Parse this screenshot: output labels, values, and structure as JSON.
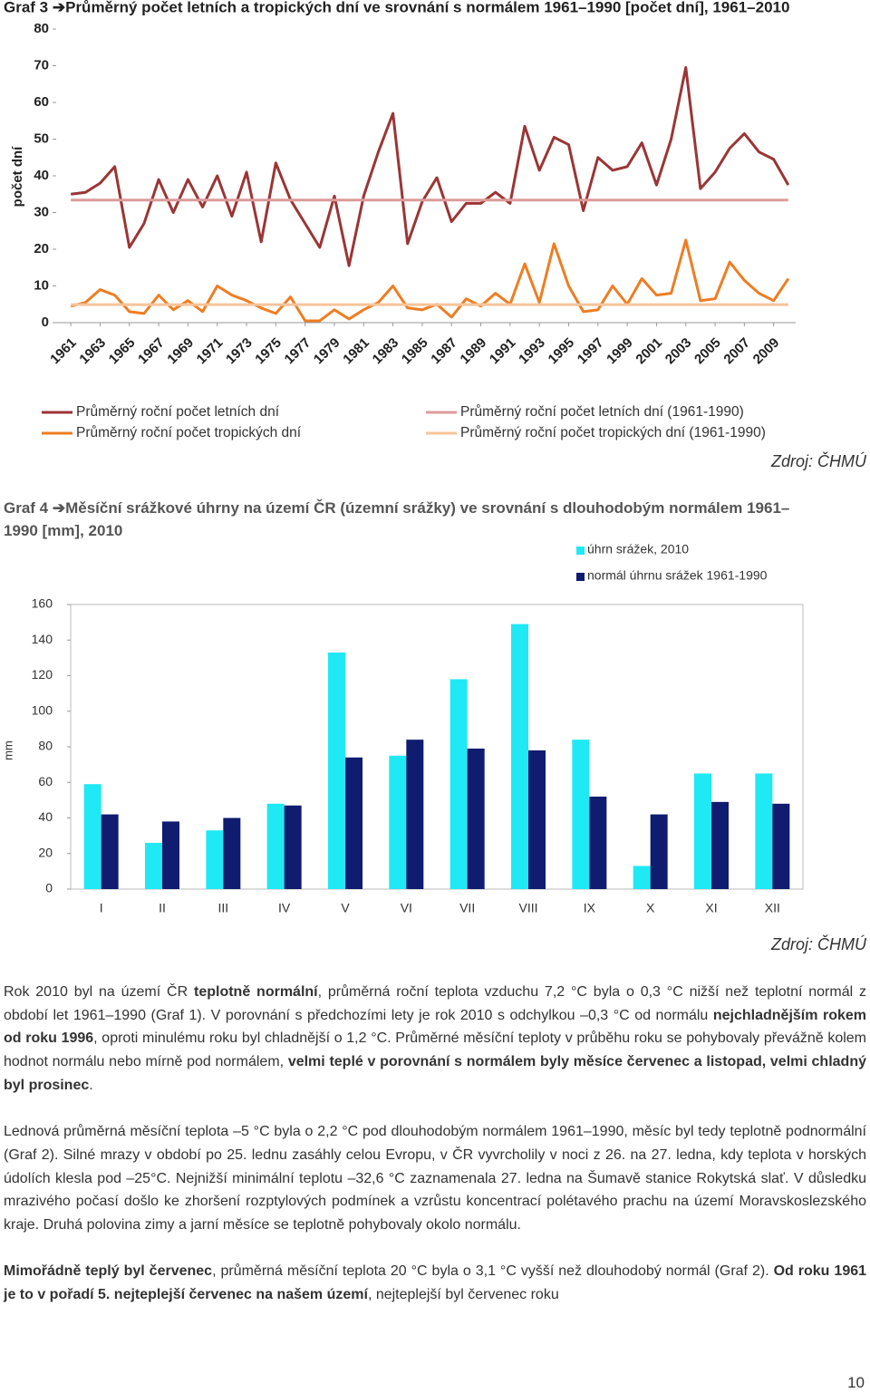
{
  "chart_data": [
    {
      "type": "line",
      "title": "Graf 3 ➔Průměrný počet letních a tropických dní ve srovnání s normálem 1961–1990 [počet dní], 1961–2010",
      "y_label": "počet dní",
      "source": "Zdroj: ČHMÚ",
      "x": [
        1961,
        1962,
        1963,
        1964,
        1965,
        1966,
        1967,
        1968,
        1969,
        1970,
        1971,
        1972,
        1973,
        1974,
        1975,
        1976,
        1977,
        1978,
        1979,
        1980,
        1981,
        1982,
        1983,
        1984,
        1985,
        1986,
        1987,
        1988,
        1989,
        1990,
        1991,
        1992,
        1993,
        1994,
        1995,
        1996,
        1997,
        1998,
        1999,
        2000,
        2001,
        2002,
        2003,
        2004,
        2005,
        2006,
        2007,
        2008,
        2009,
        2010
      ],
      "xlim": [
        1960,
        2011
      ],
      "xticks": [
        1961,
        1963,
        1965,
        1967,
        1969,
        1971,
        1973,
        1975,
        1977,
        1979,
        1981,
        1983,
        1985,
        1987,
        1989,
        1991,
        1993,
        1995,
        1997,
        1999,
        2001,
        2003,
        2005,
        2007,
        2009
      ],
      "ylim": [
        0,
        80
      ],
      "yticks": [
        0,
        10,
        20,
        30,
        40,
        50,
        60,
        70,
        80
      ],
      "series": [
        {
          "name": "Průměrný roční počet letních dní",
          "color": "#9b3535",
          "values": [
            35,
            35.5,
            38,
            42.5,
            20.5,
            27,
            39,
            30,
            39,
            31.5,
            40,
            29,
            41,
            22,
            43.5,
            33.5,
            27,
            20.5,
            34.5,
            15.5,
            34.5,
            46.5,
            57,
            21.5,
            33,
            39.5,
            27.5,
            32.5,
            32.5,
            35.5,
            32.5,
            53.5,
            41.5,
            50.5,
            48.5,
            30.5,
            45,
            41.5,
            42.5,
            49,
            37.5,
            50,
            69.5,
            36.5,
            41,
            47.5,
            51.5,
            46.5,
            44.5,
            37.5
          ]
        },
        {
          "name": "Průměrný roční počet tropických dní",
          "color": "#ee7d22",
          "values": [
            4.5,
            5.5,
            9,
            7.5,
            3,
            2.5,
            7.5,
            3.5,
            6,
            3,
            10,
            7.5,
            6,
            4,
            2.5,
            7,
            0.5,
            0.5,
            3.5,
            1,
            3.5,
            5.5,
            10,
            4,
            3.5,
            5,
            1.5,
            6.5,
            4.5,
            8,
            5,
            16,
            5.5,
            21.5,
            10,
            3,
            3.5,
            10,
            5,
            12,
            7.5,
            8,
            22.5,
            6,
            6.5,
            16.5,
            11.5,
            8,
            6,
            12
          ]
        },
        {
          "name": "Průměrný roční počet letních dní (1961-1990)",
          "color": "#dc9b9b",
          "values": [
            33.4,
            33.4,
            33.4,
            33.4,
            33.4,
            33.4,
            33.4,
            33.4,
            33.4,
            33.4,
            33.4,
            33.4,
            33.4,
            33.4,
            33.4,
            33.4,
            33.4,
            33.4,
            33.4,
            33.4,
            33.4,
            33.4,
            33.4,
            33.4,
            33.4,
            33.4,
            33.4,
            33.4,
            33.4,
            33.4,
            33.4,
            33.4,
            33.4,
            33.4,
            33.4,
            33.4,
            33.4,
            33.4,
            33.4,
            33.4,
            33.4,
            33.4,
            33.4,
            33.4,
            33.4,
            33.4,
            33.4,
            33.4,
            33.4,
            33.4
          ]
        },
        {
          "name": "Průměrný roční počet tropických dní  (1961-1990)",
          "color": "#f7c49a",
          "values": [
            4.9,
            4.9,
            4.9,
            4.9,
            4.9,
            4.9,
            4.9,
            4.9,
            4.9,
            4.9,
            4.9,
            4.9,
            4.9,
            4.9,
            4.9,
            4.9,
            4.9,
            4.9,
            4.9,
            4.9,
            4.9,
            4.9,
            4.9,
            4.9,
            4.9,
            4.9,
            4.9,
            4.9,
            4.9,
            4.9,
            4.9,
            4.9,
            4.9,
            4.9,
            4.9,
            4.9,
            4.9,
            4.9,
            4.9,
            4.9,
            4.9,
            4.9,
            4.9,
            4.9,
            4.9,
            4.9,
            4.9,
            4.9,
            4.9,
            4.9
          ]
        }
      ]
    },
    {
      "type": "bar",
      "title": "Graf 4 ➔Měsíční srážkové úhrny na území ČR (územní srážky) ve srovnání s dlouhodobým normálem 1961–1990 [mm], 2010",
      "y_label": "mm",
      "source": "Zdroj: ČHMÚ",
      "categories": [
        "I",
        "II",
        "III",
        "IV",
        "V",
        "VI",
        "VII",
        "VIII",
        "IX",
        "X",
        "XI",
        "XII"
      ],
      "ylim": [
        0,
        160
      ],
      "yticks": [
        0,
        20,
        40,
        60,
        80,
        100,
        120,
        140,
        160
      ],
      "series": [
        {
          "name": "úhrn srážek, 2010",
          "color": "#1fe9f5",
          "values": [
            59,
            26,
            33,
            48,
            133,
            75,
            118,
            149,
            84,
            13,
            65,
            65
          ]
        },
        {
          "name": "normál úhrnu srážek 1961-1990",
          "color": "#0f1c70",
          "values": [
            42,
            38,
            40,
            47,
            74,
            84,
            79,
            78,
            52,
            42,
            49,
            48
          ]
        }
      ]
    }
  ],
  "paragraphs": [
    {
      "runs": [
        {
          "text": "Rok 2010 byl na území ČR ",
          "bold": false
        },
        {
          "text": "teplotně normální",
          "bold": true
        },
        {
          "text": ", průměrná roční teplota vzduchu 7,2 °C byla o 0,3 °C nižší než teplotní normál z období let 1961–1990 (Graf 1). V porovnání s předchozími lety je rok 2010 s odchylkou –0,3 °C od normálu ",
          "bold": false
        },
        {
          "text": "nejchladnějším rokem od roku 1996",
          "bold": true
        },
        {
          "text": ", oproti minulému roku byl chladnější o 1,2 °C. Průměrné měsíční teploty v průběhu roku se pohybovaly převážně kolem hodnot normálu nebo mírně pod normálem, ",
          "bold": false
        },
        {
          "text": "velmi teplé v porovnání s normálem byly měsíce červenec a listopad, velmi chladný byl prosinec",
          "bold": true
        },
        {
          "text": ".",
          "bold": false
        }
      ]
    },
    {
      "runs": [
        {
          "text": "Lednová průměrná měsíční teplota –5 °C byla o 2,2 °C pod dlouhodobým normálem 1961–1990, měsíc byl tedy teplotně podnormální (Graf 2). Silné mrazy v období po 25. lednu zasáhly celou Evropu, v ČR vyvrcholily v noci z 26. na 27. ledna, kdy teplota v horských údolích klesla pod –25°C. Nejnižší minimální teplotu –32,6 °C zaznamenala 27. ledna na Šumavě stanice Rokytská slať. V důsledku mrazivého počasí došlo ke zhoršení rozptylových podmínek a vzrůstu koncentrací polétavého prachu na území Moravskoslezského kraje. Druhá polovina zimy a jarní měsíce se teplotně pohybovaly okolo normálu.",
          "bold": false
        }
      ]
    },
    {
      "runs": [
        {
          "text": "Mimořádně teplý byl červenec",
          "bold": true
        },
        {
          "text": ", průměrná měsíční teplota 20 °C byla o 3,1 °C vyšší než dlouhodobý normál (Graf 2). ",
          "bold": false
        },
        {
          "text": "Od roku 1961 je to v pořadí 5. nejteplejší červenec na našem území",
          "bold": true
        },
        {
          "text": ", nejteplejší byl červenec roku",
          "bold": false
        }
      ]
    }
  ],
  "page_number": "10"
}
